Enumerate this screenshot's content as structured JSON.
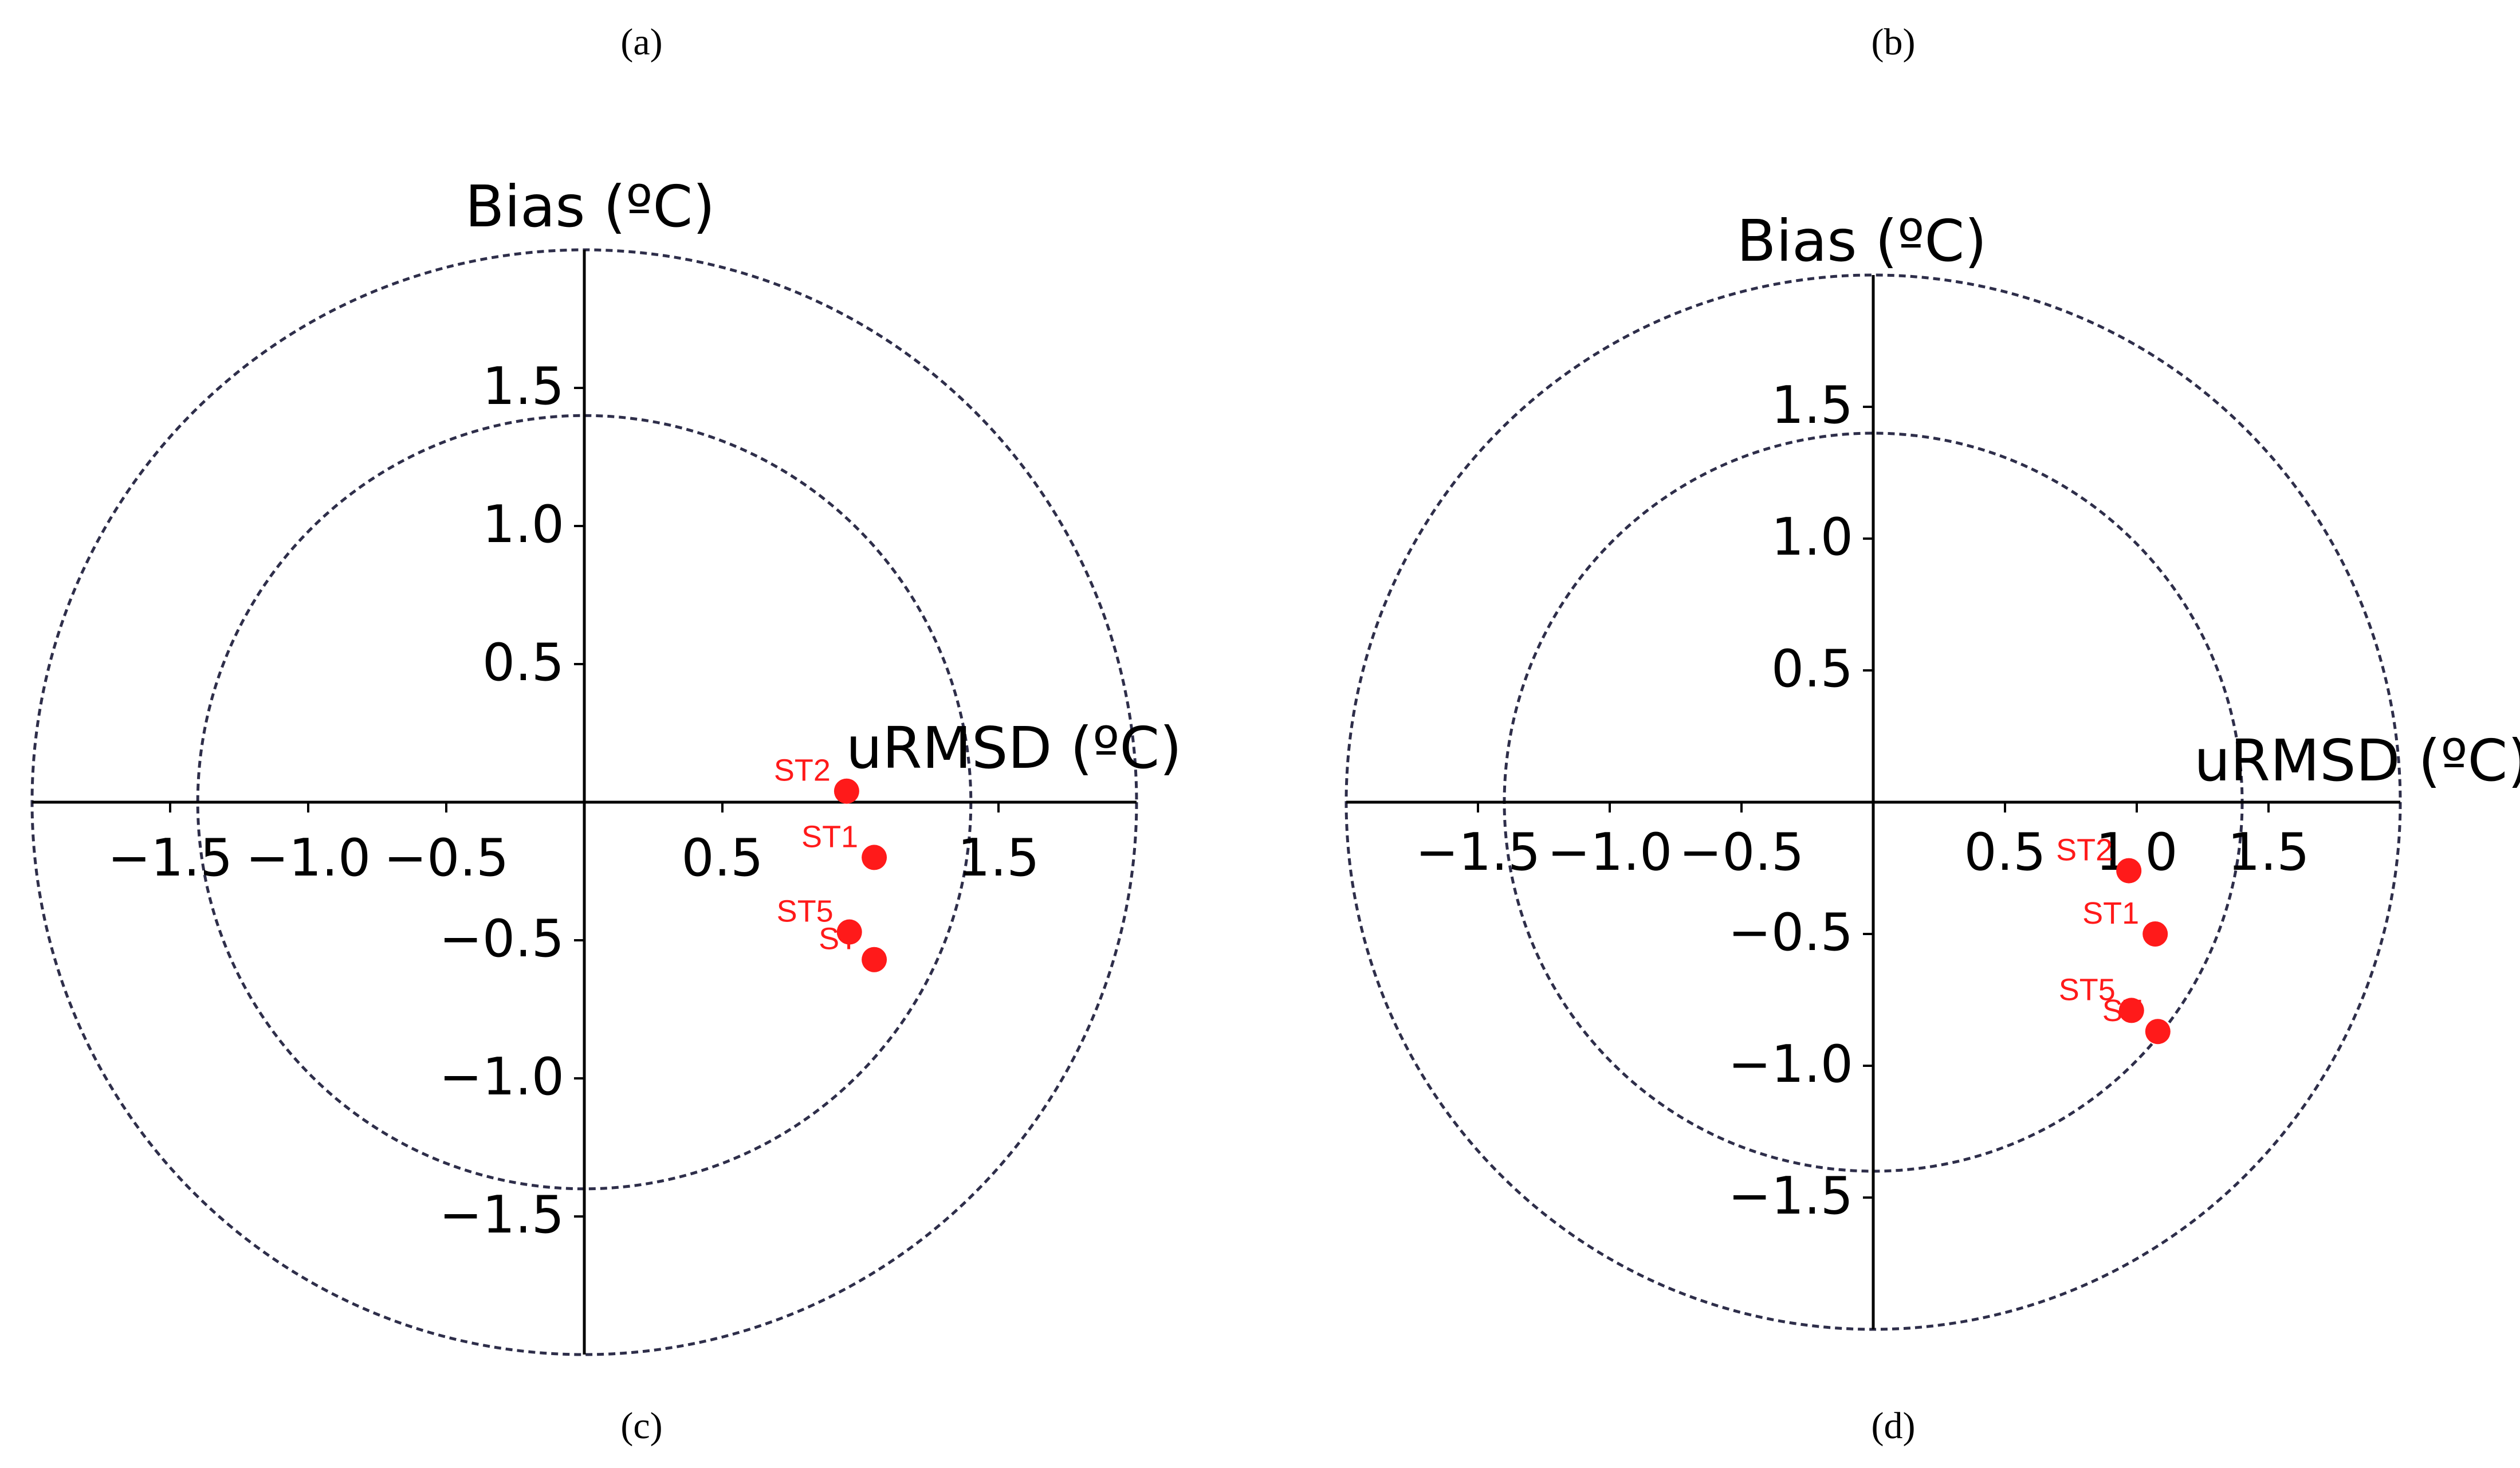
{
  "panel_labels": {
    "top_left": "(a)",
    "top_right": "(b)",
    "bottom_left": "(c)",
    "bottom_right": "(d)"
  },
  "colors": {
    "points": "#ff1a1a",
    "circles": "#2e2e4a",
    "axes": "#000000"
  },
  "chart_data": [
    {
      "type": "scatter",
      "title": "",
      "xlabel": "uRMSD (ºC)",
      "ylabel": "Bias (ºC)",
      "xlim": [
        -2.0,
        2.0
      ],
      "ylim": [
        -2.0,
        2.0
      ],
      "x_ticks": [
        {
          "v": -1.5,
          "t": "−1.5"
        },
        {
          "v": -1.0,
          "t": "−1.0"
        },
        {
          "v": -0.5,
          "t": "−0.5"
        },
        {
          "v": 0.5,
          "t": "0.5"
        },
        {
          "v": 1.5,
          "t": "1.5"
        }
      ],
      "y_ticks": [
        {
          "v": 1.5,
          "t": "1.5"
        },
        {
          "v": 1.0,
          "t": "1.0"
        },
        {
          "v": 0.5,
          "t": "0.5"
        },
        {
          "v": -0.5,
          "t": "−0.5"
        },
        {
          "v": -1.0,
          "t": "−1.0"
        },
        {
          "v": -1.5,
          "t": "−1.5"
        }
      ],
      "reference_circles": [
        1.4,
        2.0
      ],
      "points": [
        {
          "label": "ST2",
          "x": 0.95,
          "y": 0.04
        },
        {
          "label": "ST1",
          "x": 1.05,
          "y": -0.2
        },
        {
          "label": "ST5",
          "x": 0.96,
          "y": -0.47
        },
        {
          "label": "ST",
          "x": 1.05,
          "y": -0.57
        }
      ]
    },
    {
      "type": "scatter",
      "title": "",
      "xlabel": "uRMSD (ºC)",
      "ylabel": "Bias (ºC)",
      "xlim": [
        -2.0,
        2.0
      ],
      "ylim": [
        -2.0,
        2.0
      ],
      "x_ticks": [
        {
          "v": -1.5,
          "t": "−1.5"
        },
        {
          "v": -1.0,
          "t": "−1.0"
        },
        {
          "v": -0.5,
          "t": "−0.5"
        },
        {
          "v": 0.5,
          "t": "0.5"
        },
        {
          "v": 1.0,
          "t": "1.0"
        },
        {
          "v": 1.5,
          "t": "1.5"
        }
      ],
      "y_ticks": [
        {
          "v": 1.5,
          "t": "1.5"
        },
        {
          "v": 1.0,
          "t": "1.0"
        },
        {
          "v": 0.5,
          "t": "0.5"
        },
        {
          "v": -0.5,
          "t": "−0.5"
        },
        {
          "v": -1.0,
          "t": "−1.0"
        },
        {
          "v": -1.5,
          "t": "−1.5"
        }
      ],
      "reference_circles": [
        1.4,
        2.0
      ],
      "points": [
        {
          "label": "ST2",
          "x": 0.97,
          "y": -0.26
        },
        {
          "label": "ST1",
          "x": 1.07,
          "y": -0.5
        },
        {
          "label": "ST5",
          "x": 0.98,
          "y": -0.79
        },
        {
          "label": "ST",
          "x": 1.08,
          "y": -0.87
        }
      ]
    }
  ]
}
